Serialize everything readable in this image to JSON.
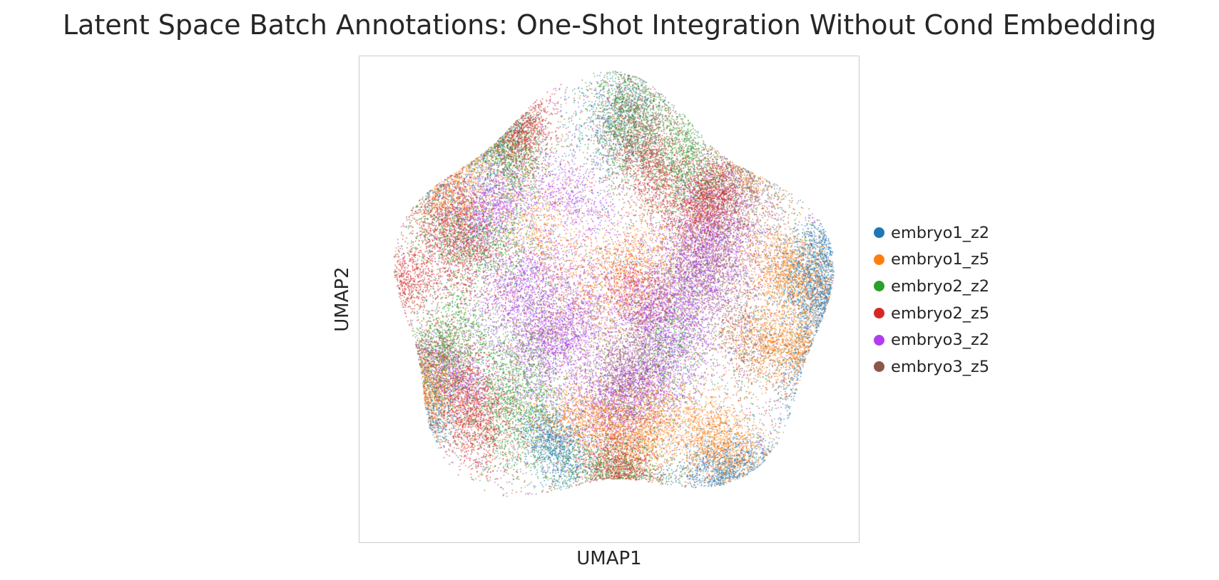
{
  "chart_data": {
    "type": "scatter",
    "title": "Latent Space Batch Annotations: One-Shot Integration Without Cond Embedding",
    "xlabel": "UMAP1",
    "ylabel": "UMAP2",
    "grid": false,
    "ticks": false,
    "legend_position": "right",
    "xlim": [
      -1.0,
      1.0
    ],
    "ylim": [
      -1.0,
      1.0
    ],
    "series": [
      {
        "name": "embryo1_z2",
        "color": "#1f77b4",
        "clusters": [
          {
            "x": -0.77,
            "y": 0.6,
            "r": 0.07,
            "weight": 3
          },
          {
            "x": -0.48,
            "y": 0.7,
            "r": 0.06,
            "weight": 2
          },
          {
            "x": 0.88,
            "y": 0.2,
            "r": 0.08,
            "weight": 3
          },
          {
            "x": 0.9,
            "y": -0.05,
            "r": 0.07,
            "weight": 3
          },
          {
            "x": 0.82,
            "y": -0.3,
            "r": 0.07,
            "weight": 2
          },
          {
            "x": 0.5,
            "y": -0.72,
            "r": 0.08,
            "weight": 3
          },
          {
            "x": -0.22,
            "y": -0.6,
            "r": 0.06,
            "weight": 2
          },
          {
            "x": -0.7,
            "y": -0.47,
            "r": 0.05,
            "weight": 1
          },
          {
            "x": 0.6,
            "y": 0.62,
            "r": 0.06,
            "weight": 2
          },
          {
            "x": 0.02,
            "y": 0.75,
            "r": 0.08,
            "weight": 1
          }
        ]
      },
      {
        "name": "embryo1_z5",
        "color": "#ff7f0e",
        "clusters": [
          {
            "x": -0.68,
            "y": 0.55,
            "r": 0.08,
            "weight": 3
          },
          {
            "x": -0.55,
            "y": 0.65,
            "r": 0.06,
            "weight": 2
          },
          {
            "x": 0.66,
            "y": 0.6,
            "r": 0.07,
            "weight": 3
          },
          {
            "x": 0.74,
            "y": 0.1,
            "r": 0.08,
            "weight": 3
          },
          {
            "x": 0.72,
            "y": -0.2,
            "r": 0.08,
            "weight": 3
          },
          {
            "x": 0.45,
            "y": -0.6,
            "r": 0.08,
            "weight": 3
          },
          {
            "x": 0.15,
            "y": -0.55,
            "r": 0.07,
            "weight": 2
          },
          {
            "x": -0.08,
            "y": -0.5,
            "r": 0.07,
            "weight": 2
          },
          {
            "x": -0.72,
            "y": -0.38,
            "r": 0.06,
            "weight": 2
          },
          {
            "x": 0.05,
            "y": 0.1,
            "r": 0.1,
            "weight": 2
          },
          {
            "x": -0.28,
            "y": 0.3,
            "r": 0.08,
            "weight": 1
          }
        ]
      },
      {
        "name": "embryo2_z2",
        "color": "#2ca02c",
        "clusters": [
          {
            "x": -0.4,
            "y": 0.6,
            "r": 0.07,
            "weight": 2
          },
          {
            "x": 0.08,
            "y": 0.75,
            "r": 0.08,
            "weight": 2
          },
          {
            "x": 0.3,
            "y": 0.58,
            "r": 0.08,
            "weight": 2
          },
          {
            "x": -0.38,
            "y": -0.4,
            "r": 0.1,
            "weight": 3
          },
          {
            "x": -0.65,
            "y": -0.2,
            "r": 0.08,
            "weight": 2
          },
          {
            "x": 0.0,
            "y": -0.72,
            "r": 0.08,
            "weight": 2
          },
          {
            "x": -0.55,
            "y": 0.25,
            "r": 0.09,
            "weight": 2
          },
          {
            "x": 0.25,
            "y": -0.2,
            "r": 0.09,
            "weight": 1
          }
        ]
      },
      {
        "name": "embryo2_z5",
        "color": "#d62728",
        "clusters": [
          {
            "x": -0.62,
            "y": 0.28,
            "r": 0.09,
            "weight": 3
          },
          {
            "x": -0.85,
            "y": 0.05,
            "r": 0.07,
            "weight": 2
          },
          {
            "x": -0.55,
            "y": -0.45,
            "r": 0.08,
            "weight": 3
          },
          {
            "x": 0.05,
            "y": -0.75,
            "r": 0.08,
            "weight": 3
          },
          {
            "x": 0.2,
            "y": 0.52,
            "r": 0.08,
            "weight": 2
          },
          {
            "x": -0.35,
            "y": 0.7,
            "r": 0.06,
            "weight": 2
          },
          {
            "x": 0.4,
            "y": 0.4,
            "r": 0.06,
            "weight": 2
          },
          {
            "x": 0.1,
            "y": 0.05,
            "r": 0.07,
            "weight": 1
          }
        ]
      },
      {
        "name": "embryo3_z2",
        "color": "#b03ef0",
        "clusters": [
          {
            "x": 0.38,
            "y": 0.18,
            "r": 0.1,
            "weight": 4
          },
          {
            "x": -0.2,
            "y": -0.15,
            "r": 0.09,
            "weight": 3
          },
          {
            "x": 0.1,
            "y": -0.35,
            "r": 0.09,
            "weight": 3
          },
          {
            "x": -0.48,
            "y": 0.38,
            "r": 0.07,
            "weight": 2
          },
          {
            "x": -0.35,
            "y": 0.05,
            "r": 0.08,
            "weight": 2
          },
          {
            "x": 0.2,
            "y": -0.08,
            "r": 0.08,
            "weight": 2
          },
          {
            "x": -0.62,
            "y": -0.3,
            "r": 0.06,
            "weight": 1
          },
          {
            "x": -0.15,
            "y": 0.42,
            "r": 0.07,
            "weight": 1
          }
        ]
      },
      {
        "name": "embryo3_z5",
        "color": "#8c564b",
        "clusters": [
          {
            "x": 0.38,
            "y": 0.15,
            "r": 0.1,
            "weight": 3
          },
          {
            "x": 0.08,
            "y": -0.32,
            "r": 0.09,
            "weight": 3
          },
          {
            "x": 0.1,
            "y": 0.72,
            "r": 0.08,
            "weight": 2
          },
          {
            "x": 0.48,
            "y": 0.45,
            "r": 0.08,
            "weight": 2
          },
          {
            "x": 0.05,
            "y": -0.82,
            "r": 0.06,
            "weight": 2
          },
          {
            "x": -0.78,
            "y": -0.25,
            "r": 0.06,
            "weight": 2
          },
          {
            "x": 0.55,
            "y": -0.15,
            "r": 0.07,
            "weight": 1
          },
          {
            "x": -0.25,
            "y": -0.1,
            "r": 0.08,
            "weight": 1
          }
        ]
      }
    ]
  }
}
